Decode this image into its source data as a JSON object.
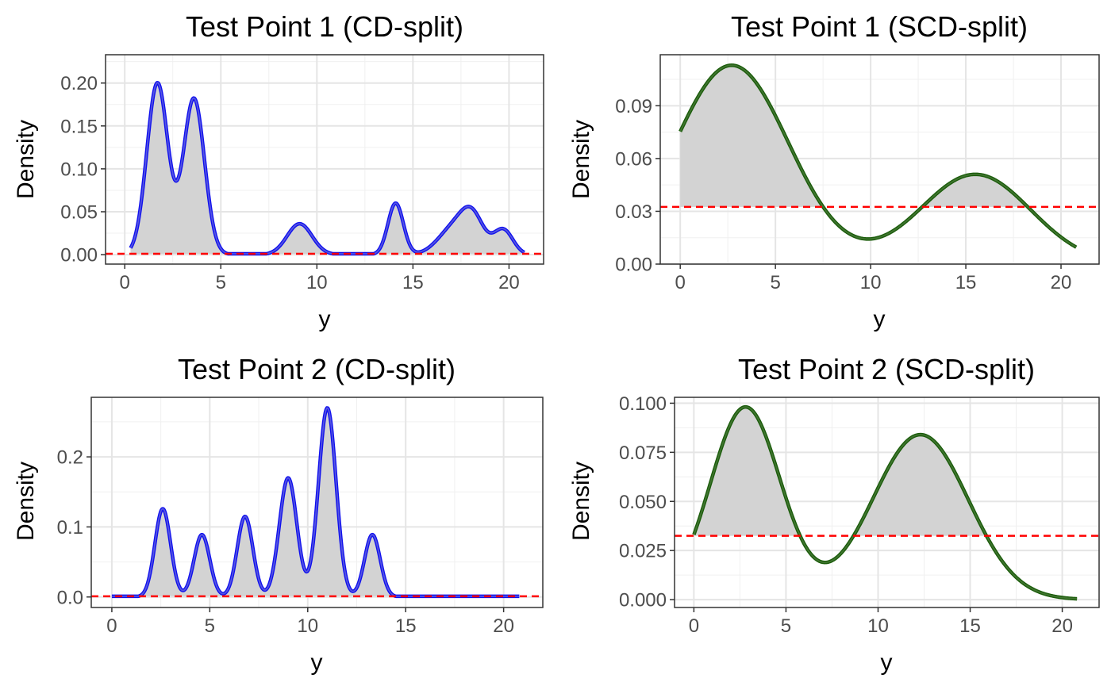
{
  "chart_data": [
    {
      "type": "area",
      "title": "Test Point 1 (CD-split)",
      "xlabel": "y",
      "ylabel": "Density",
      "xlim": [
        -1,
        21.8
      ],
      "ylim": [
        -0.011,
        0.233
      ],
      "xticks": [
        0,
        5,
        10,
        15,
        20
      ],
      "xtick_labels": [
        "0",
        "5",
        "10",
        "15",
        "20"
      ],
      "yticks": [
        0,
        0.05,
        0.1,
        0.15,
        0.2
      ],
      "ytick_labels": [
        "0.00",
        "0.05",
        "0.10",
        "0.15",
        "0.20"
      ],
      "threshold": 0.001,
      "curve_color": "#1010ee",
      "curve_inner_color": "#6666dd",
      "threshold_color": "#ff0000",
      "fill_color": "#d3d3d3",
      "x_range": [
        0.3,
        20.8
      ],
      "components": [
        {
          "mu": 1.7,
          "sigma": 0.55,
          "height": 0.2
        },
        {
          "mu": 3.6,
          "sigma": 0.55,
          "height": 0.182
        },
        {
          "mu": 9.1,
          "sigma": 0.65,
          "height": 0.036
        },
        {
          "mu": 14.1,
          "sigma": 0.4,
          "height": 0.06
        },
        {
          "mu": 17.1,
          "sigma": 0.8,
          "height": 0.03
        },
        {
          "mu": 18.1,
          "sigma": 0.6,
          "height": 0.04
        },
        {
          "mu": 19.7,
          "sigma": 0.5,
          "height": 0.029
        }
      ],
      "clip_below_threshold": true
    },
    {
      "type": "area",
      "title": "Test Point 1 (SCD-split)",
      "xlabel": "y",
      "ylabel": "Density",
      "xlim": [
        -1.05,
        22.0
      ],
      "ylim": [
        0,
        0.119
      ],
      "xticks": [
        0,
        5,
        10,
        15,
        20
      ],
      "xtick_labels": [
        "0",
        "5",
        "10",
        "15",
        "20"
      ],
      "yticks": [
        0,
        0.03,
        0.06,
        0.09
      ],
      "ytick_labels": [
        "0.00",
        "0.03",
        "0.06",
        "0.09"
      ],
      "threshold": 0.0325,
      "curve_color": "#1a5c0a",
      "curve_inner_color": "#4a7a3a",
      "threshold_color": "#ff0000",
      "fill_color": "#d3d3d3",
      "x_range": [
        0,
        20.8
      ],
      "components": [
        {
          "mu": 2.7,
          "sigma": 3.0,
          "height": 0.113
        },
        {
          "mu": 15.5,
          "sigma": 2.9,
          "height": 0.051
        }
      ],
      "clip_below_threshold": false
    },
    {
      "type": "area",
      "title": "Test Point 2 (CD-split)",
      "xlabel": "y",
      "ylabel": "Density",
      "xlim": [
        -1.05,
        22.0
      ],
      "ylim": [
        -0.015,
        0.285
      ],
      "xticks": [
        0,
        5,
        10,
        15,
        20
      ],
      "xtick_labels": [
        "0",
        "5",
        "10",
        "15",
        "20"
      ],
      "yticks": [
        0,
        0.1,
        0.2
      ],
      "ytick_labels": [
        "0.0",
        "0.1",
        "0.2"
      ],
      "threshold": 0.001,
      "curve_color": "#1010ee",
      "curve_inner_color": "#6666dd",
      "threshold_color": "#ff0000",
      "fill_color": "#d3d3d3",
      "x_range": [
        0,
        20.8
      ],
      "components": [
        {
          "mu": 2.6,
          "sigma": 0.4,
          "height": 0.126
        },
        {
          "mu": 4.6,
          "sigma": 0.4,
          "height": 0.089
        },
        {
          "mu": 6.8,
          "sigma": 0.4,
          "height": 0.115
        },
        {
          "mu": 9.0,
          "sigma": 0.45,
          "height": 0.17
        },
        {
          "mu": 11.0,
          "sigma": 0.45,
          "height": 0.27
        },
        {
          "mu": 13.3,
          "sigma": 0.4,
          "height": 0.089
        }
      ],
      "clip_below_threshold": true
    },
    {
      "type": "area",
      "title": "Test Point 2 (SCD-split)",
      "xlabel": "y",
      "ylabel": "Density",
      "xlim": [
        -1.05,
        22.0
      ],
      "ylim": [
        -0.004,
        0.103
      ],
      "xticks": [
        0,
        5,
        10,
        15,
        20
      ],
      "xtick_labels": [
        "0",
        "5",
        "10",
        "15",
        "20"
      ],
      "yticks": [
        0,
        0.025,
        0.05,
        0.075,
        0.1
      ],
      "ytick_labels": [
        "0.000",
        "0.025",
        "0.050",
        "0.075",
        "0.100"
      ],
      "threshold": 0.0325,
      "curve_color": "#1a5c0a",
      "curve_inner_color": "#4a7a3a",
      "threshold_color": "#ff0000",
      "fill_color": "#d3d3d3",
      "x_range": [
        0,
        20.8
      ],
      "components": [
        {
          "mu": 2.8,
          "sigma": 1.9,
          "height": 0.098
        },
        {
          "mu": 12.3,
          "sigma": 2.6,
          "height": 0.084
        }
      ],
      "clip_below_threshold": false
    }
  ]
}
